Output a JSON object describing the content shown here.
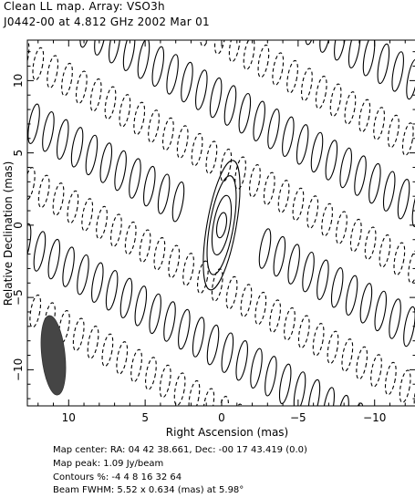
{
  "header": {
    "title": "Clean LL map.  Array:  VSO3h",
    "subtitle": "J0442-00 at 4.812 GHz 2002 Mar 01"
  },
  "footer": {
    "map_center": "Map center:  RA: 04 42 38.661,  Dec: -00 17 43.419 (0.0)",
    "map_peak": "Map peak: 1.09 Jy/beam",
    "contours": "Contours %: -4 4 8 16 32 64",
    "beam": "Beam FWHM: 5.52 x 0.634 (mas) at 5.98°"
  },
  "chart_data": {
    "type": "contour",
    "xlabel": "Right Ascension   (mas)",
    "ylabel": "Relative Declination   (mas)",
    "xlim": [
      12.7,
      -12.7
    ],
    "ylim": [
      -12.5,
      12.8
    ],
    "x_ticks": [
      10,
      5,
      0,
      -5,
      -10
    ],
    "x_tick_labels": [
      "10",
      "5",
      "0",
      "−5",
      "−10"
    ],
    "y_ticks": [
      10,
      5,
      0,
      -5,
      -10
    ],
    "y_tick_labels": [
      "10",
      "5",
      "0",
      "−5",
      "−10"
    ],
    "contour_levels_percent": [
      -4,
      4,
      8,
      16,
      32,
      64
    ],
    "map_peak_jy_per_beam": 1.09,
    "source": {
      "x": 0.0,
      "y": 0.0
    },
    "beam": {
      "x": 11.0,
      "y": -9.0,
      "major_mas": 5.52,
      "minor_mas": 0.634,
      "pa_deg": 5.98
    },
    "colors": {
      "axes": "#000000",
      "contour": "#000000",
      "beam": "#454545"
    }
  }
}
